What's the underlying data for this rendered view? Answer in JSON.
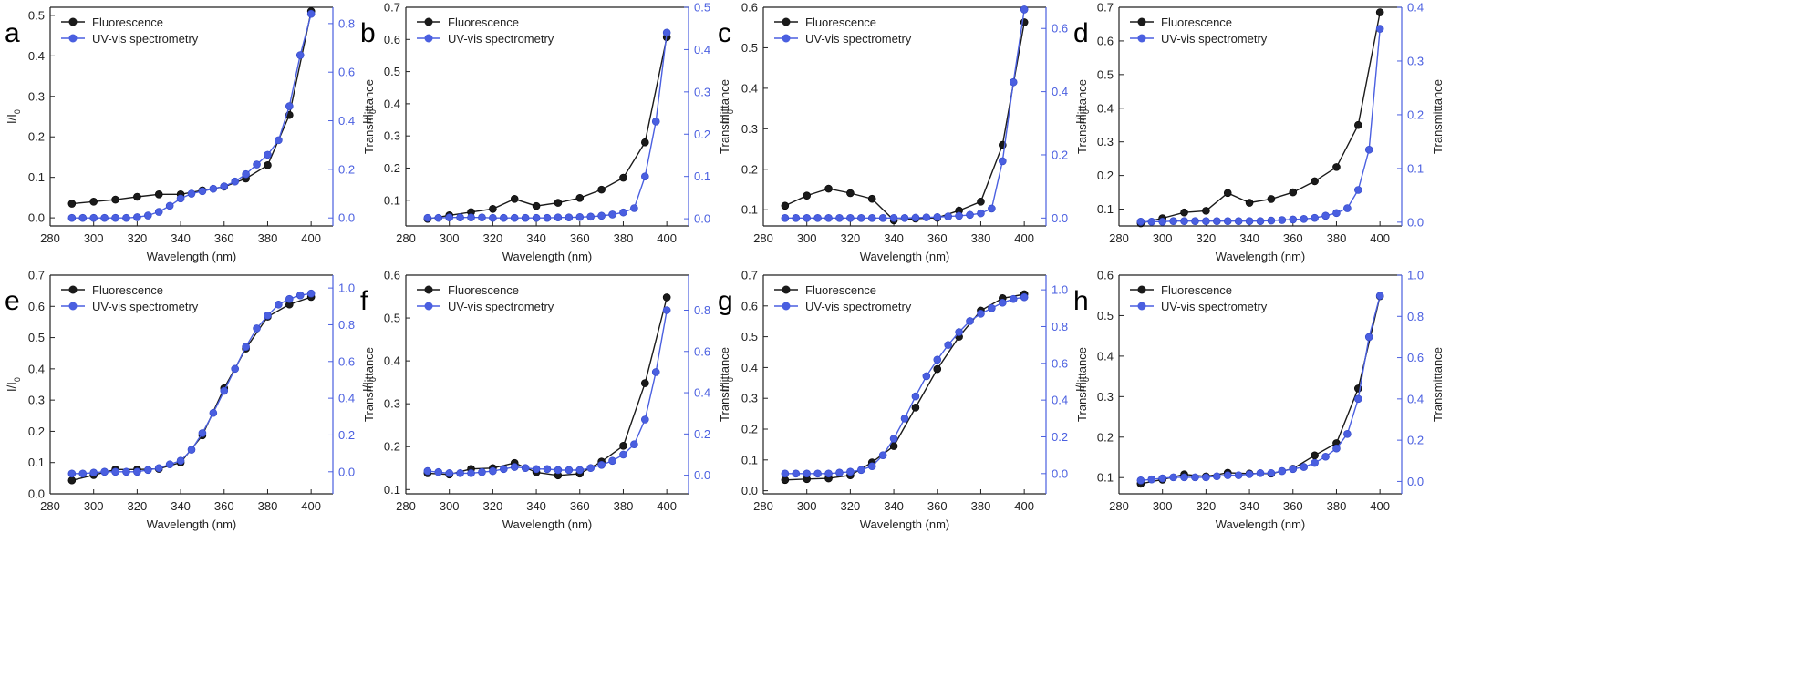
{
  "figure": {
    "legend_labels": [
      "Fluorescence",
      "UV-vis spectrometry"
    ],
    "xlabel": "Wavelength (nm)",
    "ylabel_left": "I/I",
    "ylabel_left_sub": "0",
    "ylabel_right": "Transmittance",
    "colors": {
      "fluorescence": "#1a1a1a",
      "uvvis": "#4a5fe0",
      "axis": "#222222"
    }
  },
  "chart_data": [
    {
      "panel": "a",
      "type": "line",
      "x": [
        290,
        300,
        310,
        320,
        330,
        340,
        350,
        360,
        370,
        380,
        390,
        400
      ],
      "xlim": [
        280,
        410
      ],
      "xticks": [
        280,
        300,
        320,
        340,
        360,
        380,
        400
      ],
      "ylim": [
        -0.02,
        0.52
      ],
      "yticks": [
        0.0,
        0.1,
        0.2,
        0.3,
        0.4,
        0.5
      ],
      "y2lim": [
        -0.033,
        0.867
      ],
      "y2ticks": [
        0.0,
        0.2,
        0.4,
        0.6,
        0.8
      ],
      "series": [
        {
          "name": "Fluorescence",
          "axis": "left",
          "x": [
            290,
            300,
            310,
            320,
            330,
            340,
            350,
            360,
            370,
            380,
            390,
            400
          ],
          "values": [
            0.035,
            0.04,
            0.045,
            0.052,
            0.058,
            0.058,
            0.068,
            0.077,
            0.097,
            0.13,
            0.254,
            0.51
          ]
        },
        {
          "name": "UV-vis spectrometry",
          "axis": "right",
          "x": [
            290,
            295,
            300,
            305,
            310,
            315,
            320,
            325,
            330,
            335,
            340,
            345,
            350,
            355,
            360,
            365,
            370,
            375,
            380,
            385,
            390,
            395,
            400
          ],
          "values": [
            0.0,
            0.0,
            0.0,
            0.0,
            0.0,
            0.0,
            0.003,
            0.01,
            0.025,
            0.05,
            0.08,
            0.1,
            0.11,
            0.12,
            0.13,
            0.15,
            0.18,
            0.22,
            0.26,
            0.32,
            0.46,
            0.67,
            0.84
          ]
        }
      ]
    },
    {
      "panel": "b",
      "type": "line",
      "x": [
        290,
        300,
        310,
        320,
        330,
        340,
        350,
        360,
        370,
        380,
        390,
        400
      ],
      "xlim": [
        280,
        410
      ],
      "xticks": [
        280,
        300,
        320,
        340,
        360,
        380,
        400
      ],
      "ylim": [
        0.02,
        0.7
      ],
      "yticks": [
        0.1,
        0.2,
        0.3,
        0.4,
        0.5,
        0.6,
        0.7
      ],
      "y2lim": [
        -0.017,
        0.5
      ],
      "y2ticks": [
        0.0,
        0.1,
        0.2,
        0.3,
        0.4,
        0.5
      ],
      "series": [
        {
          "name": "Fluorescence",
          "axis": "left",
          "x": [
            290,
            300,
            310,
            320,
            330,
            340,
            350,
            360,
            370,
            380,
            390,
            400
          ],
          "values": [
            0.042,
            0.053,
            0.063,
            0.073,
            0.104,
            0.082,
            0.092,
            0.107,
            0.133,
            0.17,
            0.28,
            0.607
          ]
        },
        {
          "name": "UV-vis spectrometry",
          "axis": "right",
          "x": [
            290,
            295,
            300,
            305,
            310,
            315,
            320,
            325,
            330,
            335,
            340,
            345,
            350,
            355,
            360,
            365,
            370,
            375,
            380,
            385,
            390,
            395,
            400
          ],
          "values": [
            0.002,
            0.002,
            0.003,
            0.003,
            0.003,
            0.003,
            0.002,
            0.002,
            0.002,
            0.002,
            0.002,
            0.002,
            0.003,
            0.003,
            0.004,
            0.005,
            0.007,
            0.01,
            0.015,
            0.025,
            0.1,
            0.23,
            0.44
          ]
        }
      ]
    },
    {
      "panel": "c",
      "type": "line",
      "x": [
        290,
        300,
        310,
        320,
        330,
        340,
        350,
        360,
        370,
        380,
        390,
        400
      ],
      "xlim": [
        280,
        410
      ],
      "xticks": [
        280,
        300,
        320,
        340,
        360,
        380,
        400
      ],
      "ylim": [
        0.06,
        0.6
      ],
      "yticks": [
        0.1,
        0.2,
        0.3,
        0.4,
        0.5,
        0.6
      ],
      "y2lim": [
        -0.025,
        0.667
      ],
      "y2ticks": [
        0.0,
        0.2,
        0.4,
        0.6
      ],
      "series": [
        {
          "name": "Fluorescence",
          "axis": "left",
          "x": [
            290,
            300,
            310,
            320,
            330,
            340,
            350,
            360,
            370,
            380,
            390,
            400
          ],
          "values": [
            0.11,
            0.135,
            0.152,
            0.141,
            0.127,
            0.074,
            0.078,
            0.08,
            0.098,
            0.12,
            0.26,
            0.563
          ]
        },
        {
          "name": "UV-vis spectrometry",
          "axis": "right",
          "x": [
            290,
            295,
            300,
            305,
            310,
            315,
            320,
            325,
            330,
            335,
            340,
            345,
            350,
            355,
            360,
            365,
            370,
            375,
            380,
            385,
            390,
            395,
            400
          ],
          "values": [
            0.0,
            0.0,
            0.0,
            0.0,
            0.0,
            0.0,
            0.0,
            0.0,
            0.0,
            0.0,
            0.0,
            0.0,
            0.001,
            0.002,
            0.003,
            0.005,
            0.007,
            0.01,
            0.015,
            0.03,
            0.18,
            0.43,
            0.66
          ]
        }
      ]
    },
    {
      "panel": "d",
      "type": "line",
      "x": [
        290,
        300,
        310,
        320,
        330,
        340,
        350,
        360,
        370,
        380,
        390,
        400
      ],
      "xlim": [
        280,
        410
      ],
      "xticks": [
        280,
        300,
        320,
        340,
        360,
        380,
        400
      ],
      "ylim": [
        0.05,
        0.7
      ],
      "yticks": [
        0.1,
        0.2,
        0.3,
        0.4,
        0.5,
        0.6,
        0.7
      ],
      "y2lim": [
        -0.007,
        0.4
      ],
      "y2ticks": [
        0.0,
        0.1,
        0.2,
        0.3,
        0.4
      ],
      "series": [
        {
          "name": "Fluorescence",
          "axis": "left",
          "x": [
            290,
            300,
            310,
            320,
            330,
            340,
            350,
            360,
            370,
            380,
            390,
            400
          ],
          "values": [
            0.058,
            0.073,
            0.09,
            0.095,
            0.148,
            0.119,
            0.13,
            0.15,
            0.183,
            0.225,
            0.35,
            0.685
          ]
        },
        {
          "name": "UV-vis spectrometry",
          "axis": "right",
          "x": [
            290,
            295,
            300,
            305,
            310,
            315,
            320,
            325,
            330,
            335,
            340,
            345,
            350,
            355,
            360,
            365,
            370,
            375,
            380,
            385,
            390,
            395,
            400
          ],
          "values": [
            0.001,
            0.001,
            0.001,
            0.002,
            0.002,
            0.002,
            0.002,
            0.002,
            0.002,
            0.002,
            0.002,
            0.002,
            0.003,
            0.004,
            0.005,
            0.006,
            0.008,
            0.012,
            0.017,
            0.026,
            0.06,
            0.135,
            0.36
          ]
        }
      ]
    },
    {
      "panel": "e",
      "type": "line",
      "x": [
        290,
        300,
        310,
        320,
        330,
        340,
        350,
        360,
        370,
        380,
        390,
        400
      ],
      "xlim": [
        280,
        410
      ],
      "xticks": [
        280,
        300,
        320,
        340,
        360,
        380,
        400
      ],
      "ylim": [
        0.0,
        0.7
      ],
      "yticks": [
        0.0,
        0.1,
        0.2,
        0.3,
        0.4,
        0.5,
        0.6,
        0.7
      ],
      "y2lim": [
        -0.12,
        1.07
      ],
      "y2ticks": [
        0.0,
        0.2,
        0.4,
        0.6,
        0.8,
        1.0
      ],
      "series": [
        {
          "name": "Fluorescence",
          "axis": "left",
          "x": [
            290,
            300,
            310,
            320,
            330,
            340,
            350,
            360,
            370,
            380,
            390,
            400
          ],
          "values": [
            0.043,
            0.06,
            0.078,
            0.078,
            0.08,
            0.1,
            0.187,
            0.338,
            0.465,
            0.567,
            0.606,
            0.63
          ]
        },
        {
          "name": "UV-vis spectrometry",
          "axis": "right",
          "x": [
            290,
            295,
            300,
            305,
            310,
            315,
            320,
            325,
            330,
            335,
            340,
            345,
            350,
            355,
            360,
            365,
            370,
            375,
            380,
            385,
            390,
            395,
            400
          ],
          "values": [
            -0.01,
            -0.01,
            -0.005,
            0.0,
            0.0,
            0.0,
            0.0,
            0.01,
            0.02,
            0.04,
            0.06,
            0.12,
            0.21,
            0.32,
            0.44,
            0.56,
            0.68,
            0.78,
            0.85,
            0.91,
            0.94,
            0.96,
            0.97
          ]
        }
      ]
    },
    {
      "panel": "f",
      "type": "line",
      "x": [
        290,
        300,
        310,
        320,
        330,
        340,
        350,
        360,
        370,
        380,
        390,
        400
      ],
      "xlim": [
        280,
        410
      ],
      "xticks": [
        280,
        300,
        320,
        340,
        360,
        380,
        400
      ],
      "ylim": [
        0.09,
        0.6
      ],
      "yticks": [
        0.1,
        0.2,
        0.3,
        0.4,
        0.5,
        0.6
      ],
      "y2lim": [
        -0.09,
        0.97
      ],
      "y2ticks": [
        0.0,
        0.2,
        0.4,
        0.6,
        0.8
      ],
      "series": [
        {
          "name": "Fluorescence",
          "axis": "left",
          "x": [
            290,
            300,
            310,
            320,
            330,
            340,
            350,
            360,
            370,
            380,
            390,
            400
          ],
          "values": [
            0.138,
            0.135,
            0.148,
            0.15,
            0.162,
            0.14,
            0.133,
            0.137,
            0.165,
            0.202,
            0.348,
            0.548
          ]
        },
        {
          "name": "UV-vis spectrometry",
          "axis": "right",
          "x": [
            290,
            295,
            300,
            305,
            310,
            315,
            320,
            325,
            330,
            335,
            340,
            345,
            350,
            355,
            360,
            365,
            370,
            375,
            380,
            385,
            390,
            395,
            400
          ],
          "values": [
            0.02,
            0.015,
            0.01,
            0.01,
            0.01,
            0.015,
            0.02,
            0.03,
            0.04,
            0.035,
            0.03,
            0.03,
            0.025,
            0.025,
            0.025,
            0.035,
            0.05,
            0.07,
            0.1,
            0.15,
            0.27,
            0.5,
            0.8
          ]
        }
      ]
    },
    {
      "panel": "g",
      "type": "line",
      "x": [
        290,
        300,
        310,
        320,
        330,
        340,
        350,
        360,
        370,
        380,
        390,
        400
      ],
      "xlim": [
        280,
        410
      ],
      "xticks": [
        280,
        300,
        320,
        340,
        360,
        380,
        400
      ],
      "ylim": [
        -0.01,
        0.7
      ],
      "yticks": [
        0.0,
        0.1,
        0.2,
        0.3,
        0.4,
        0.5,
        0.6,
        0.7
      ],
      "y2lim": [
        -0.11,
        1.08
      ],
      "y2ticks": [
        0.0,
        0.2,
        0.4,
        0.6,
        0.8,
        1.0
      ],
      "series": [
        {
          "name": "Fluorescence",
          "axis": "left",
          "x": [
            290,
            300,
            310,
            320,
            330,
            340,
            350,
            360,
            370,
            380,
            390,
            400
          ],
          "values": [
            0.035,
            0.038,
            0.04,
            0.05,
            0.092,
            0.145,
            0.27,
            0.395,
            0.5,
            0.585,
            0.625,
            0.638
          ]
        },
        {
          "name": "UV-vis spectrometry",
          "axis": "right",
          "x": [
            290,
            295,
            300,
            305,
            310,
            315,
            320,
            325,
            330,
            335,
            340,
            345,
            350,
            355,
            360,
            365,
            370,
            375,
            380,
            385,
            390,
            395,
            400
          ],
          "values": [
            0.0,
            0.0,
            0.0,
            0.0,
            0.0,
            0.005,
            0.01,
            0.02,
            0.04,
            0.1,
            0.19,
            0.3,
            0.42,
            0.53,
            0.62,
            0.7,
            0.77,
            0.83,
            0.87,
            0.9,
            0.93,
            0.95,
            0.96
          ]
        }
      ]
    },
    {
      "panel": "h",
      "type": "line",
      "x": [
        290,
        300,
        310,
        320,
        330,
        340,
        350,
        360,
        370,
        380,
        390,
        400
      ],
      "xlim": [
        280,
        410
      ],
      "xticks": [
        280,
        300,
        320,
        340,
        360,
        380,
        400
      ],
      "ylim": [
        0.06,
        0.6
      ],
      "yticks": [
        0.1,
        0.2,
        0.3,
        0.4,
        0.5,
        0.6
      ],
      "y2lim": [
        -0.06,
        1.0
      ],
      "y2ticks": [
        0.0,
        0.2,
        0.4,
        0.6,
        0.8,
        1.0
      ],
      "series": [
        {
          "name": "Fluorescence",
          "axis": "left",
          "x": [
            290,
            300,
            310,
            320,
            330,
            340,
            350,
            360,
            370,
            380,
            390,
            400
          ],
          "values": [
            0.085,
            0.095,
            0.108,
            0.103,
            0.112,
            0.11,
            0.11,
            0.122,
            0.155,
            0.185,
            0.32,
            0.548
          ]
        },
        {
          "name": "UV-vis spectrometry",
          "axis": "right",
          "x": [
            290,
            295,
            300,
            305,
            310,
            315,
            320,
            325,
            330,
            335,
            340,
            345,
            350,
            355,
            360,
            365,
            370,
            375,
            380,
            385,
            390,
            395,
            400
          ],
          "values": [
            0.005,
            0.01,
            0.015,
            0.02,
            0.02,
            0.02,
            0.02,
            0.025,
            0.03,
            0.03,
            0.035,
            0.04,
            0.04,
            0.05,
            0.06,
            0.07,
            0.09,
            0.12,
            0.16,
            0.23,
            0.4,
            0.7,
            0.9
          ]
        }
      ]
    }
  ]
}
